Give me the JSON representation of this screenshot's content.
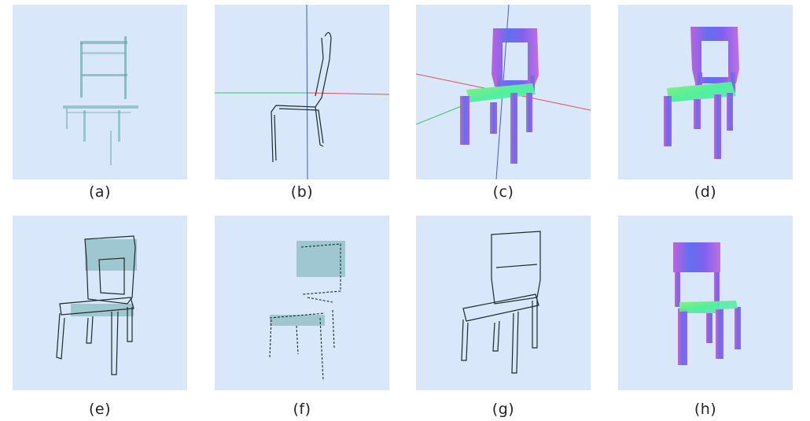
{
  "figure": {
    "panels": [
      {
        "id": "a",
        "caption": "(a)",
        "render": "sparse-point-cloud"
      },
      {
        "id": "b",
        "caption": "(b)",
        "render": "side-sketch-with-axes"
      },
      {
        "id": "c",
        "caption": "(c)",
        "render": "normal-shaded-mesh-with-axes"
      },
      {
        "id": "d",
        "caption": "(d)",
        "render": "normal-shaded-mesh"
      },
      {
        "id": "e",
        "caption": "(e)",
        "render": "sketch-with-points"
      },
      {
        "id": "f",
        "caption": "(f)",
        "render": "sparse-sketch-points"
      },
      {
        "id": "g",
        "caption": "(g)",
        "render": "clean-sketch"
      },
      {
        "id": "h",
        "caption": "(h)",
        "render": "normal-shaded-mesh-front"
      }
    ],
    "colors": {
      "panel_bg": "#d8e8fa",
      "points": "#5aa0a0",
      "stroke": "#1e2a2a",
      "axis_red": "#e05050",
      "axis_green": "#40c060",
      "axis_blue": "#4060c0",
      "normal_blue": "#5060f0",
      "normal_magenta": "#d060e0",
      "normal_green": "#50f080"
    }
  }
}
